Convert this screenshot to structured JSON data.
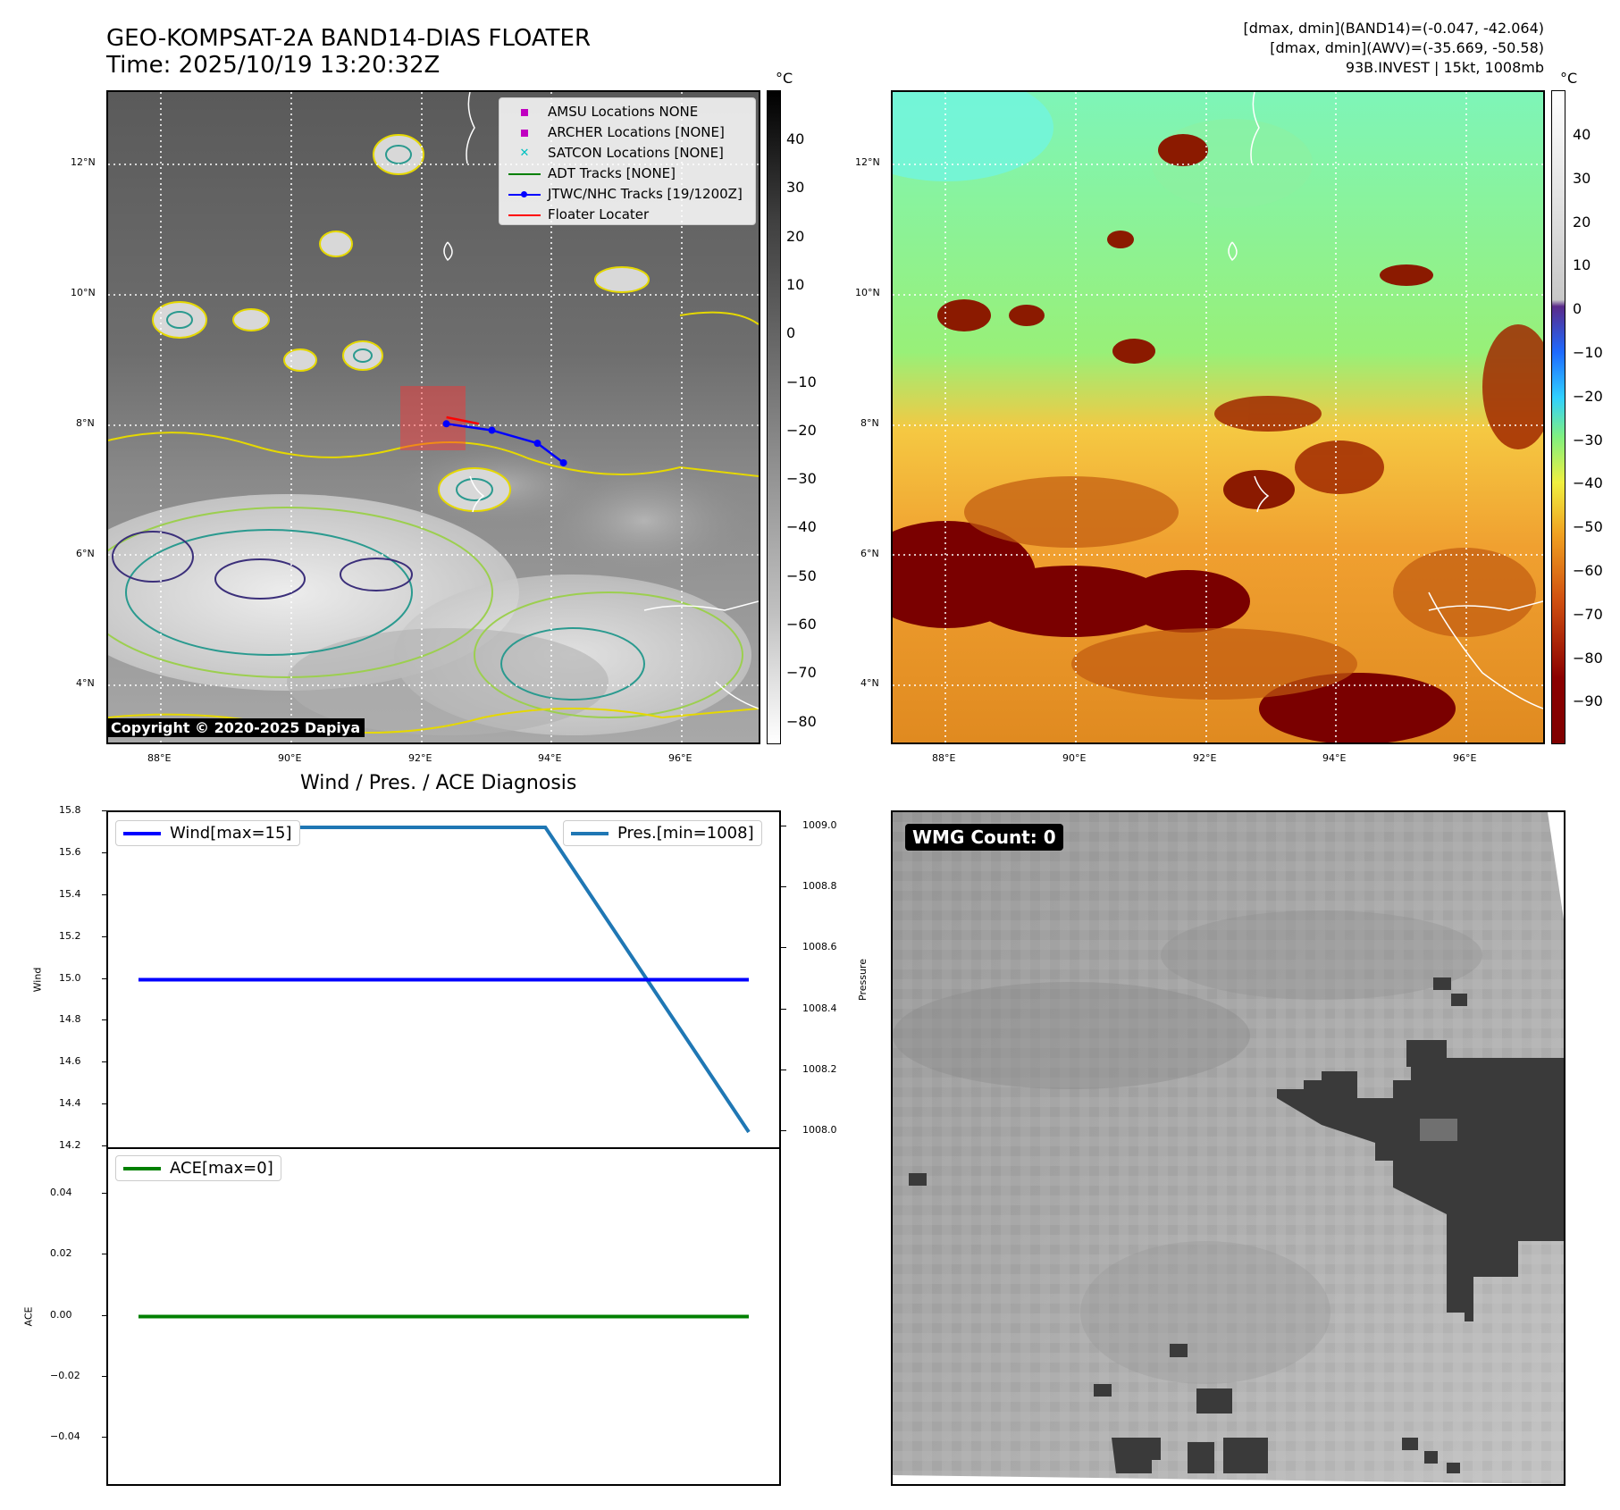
{
  "header": {
    "title_line1": "GEO-KOMPSAT-2A BAND14-DIAS FLOATER",
    "title_line2": "Time: 2025/10/19 13:20:32Z",
    "info_line1": "[dmax, dmin](BAND14)=(-0.047, -42.064)",
    "info_line2": "[dmax, dmin](AWV)=(-35.669, -50.58)",
    "info_line3": "93B.INVEST | 15kt, 1008mb"
  },
  "map_axes": {
    "lat_labels": [
      "12°N",
      "10°N",
      "8°N",
      "6°N",
      "4°N"
    ],
    "lon_labels": [
      "88°E",
      "90°E",
      "92°E",
      "94°E",
      "96°E"
    ]
  },
  "colorbar_ir": {
    "unit": "°C",
    "ticks": [
      "40",
      "30",
      "20",
      "10",
      "0",
      "−10",
      "−20",
      "−30",
      "−40",
      "−50",
      "−60",
      "−70",
      "−80"
    ]
  },
  "colorbar_wv": {
    "unit": "°C",
    "ticks": [
      "40",
      "30",
      "20",
      "10",
      "0",
      "−10",
      "−20",
      "−30",
      "−40",
      "−50",
      "−60",
      "−70",
      "−80",
      "−90"
    ]
  },
  "legend": {
    "items": [
      {
        "label": "AMSU Locations NONE",
        "color": "#c000c0",
        "kind": "square"
      },
      {
        "label": "ARCHER Locations [NONE]",
        "color": "#c000c0",
        "kind": "square"
      },
      {
        "label": "SATCON Locations [NONE]",
        "color": "#00c0c0",
        "kind": "x"
      },
      {
        "label": "ADT Tracks [NONE]",
        "color": "#008000",
        "kind": "line"
      },
      {
        "label": "JTWC/NHC Tracks [19/1200Z]",
        "color": "#0000ff",
        "kind": "line-dot"
      },
      {
        "label": "Floater Locater",
        "color": "#ff0000",
        "kind": "line"
      }
    ]
  },
  "copyright": "Copyright © 2020-2025 Dapiya",
  "diagnosis": {
    "title": "Wind / Pres. / ACE Diagnosis",
    "wind_legend": "Wind[max=15]",
    "pres_legend": "Pres.[min=1008]",
    "ace_legend": "ACE[max=0]",
    "wind_axis_label": "Wind",
    "pres_axis_label": "Pressure",
    "ace_axis_label": "ACE",
    "wind_ticks": [
      "15.8",
      "15.6",
      "15.4",
      "15.2",
      "15.0",
      "14.8",
      "14.6",
      "14.4",
      "14.2"
    ],
    "pres_ticks": [
      "1009.0",
      "1008.8",
      "1008.6",
      "1008.4",
      "1008.2",
      "1008.0"
    ],
    "ace_ticks": [
      "0.04",
      "0.02",
      "0.00",
      "−0.02",
      "−0.04"
    ]
  },
  "wmg": {
    "label": "WMG Count: 0"
  },
  "colors": {
    "wind": "#0000ff",
    "pres": "#1f77b4",
    "ace": "#008000",
    "track": "#0000ff",
    "floater": "#ff0000"
  },
  "chart_data": [
    {
      "type": "line",
      "title": "Wind / Pres. / ACE Diagnosis",
      "series": [
        {
          "name": "Wind[max=15]",
          "axis": "left",
          "x": [
            0,
            1,
            2,
            3
          ],
          "values": [
            15,
            15,
            15,
            15
          ]
        },
        {
          "name": "Pres.[min=1008]",
          "axis": "right",
          "x": [
            0,
            1,
            2,
            3
          ],
          "values": [
            1009,
            1009,
            1009,
            1008
          ]
        }
      ],
      "ylabel": "Wind",
      "ylim": [
        14.2,
        15.8
      ],
      "y2label": "Pressure",
      "y2lim": [
        1007.95,
        1009.05
      ]
    },
    {
      "type": "line",
      "series": [
        {
          "name": "ACE[max=0]",
          "x": [
            0,
            1,
            2,
            3
          ],
          "values": [
            0,
            0,
            0,
            0
          ]
        }
      ],
      "ylabel": "ACE",
      "ylim": [
        -0.055,
        0.055
      ]
    },
    {
      "type": "line",
      "title": "JTWC/NHC Tracks [19/1200Z]",
      "series": [
        {
          "name": "JTWC/NHC Tracks [19/1200Z]",
          "lon": [
            92.4,
            93.1,
            93.8,
            94.2
          ],
          "lat": [
            8.1,
            8.0,
            7.8,
            7.5
          ]
        },
        {
          "name": "Floater Locater",
          "lon": [
            92.4,
            92.9
          ],
          "lat": [
            8.2,
            8.1
          ]
        }
      ],
      "xlim": [
        87.2,
        97.2
      ],
      "ylim": [
        3.2,
        13.2
      ]
    }
  ]
}
